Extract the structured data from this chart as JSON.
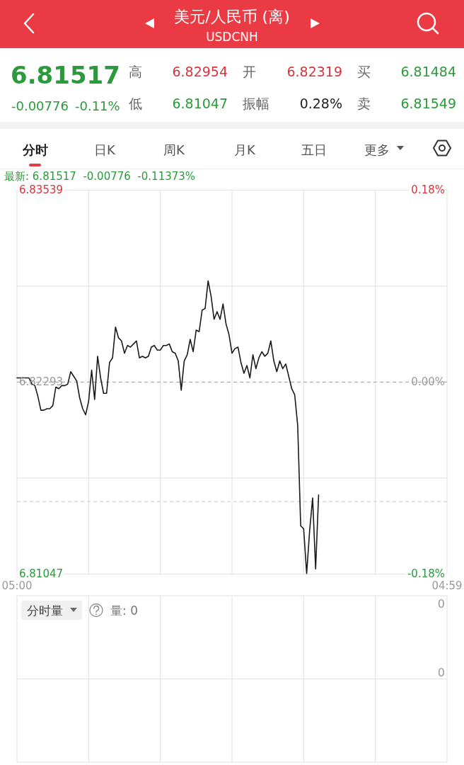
{
  "chart_data": [
    {
      "type": "line",
      "title": "美元/人民币 (离)",
      "subtitle": "USDCNH",
      "annotations": [
        "6.81517",
        "-0.00776",
        "-0.11%",
        "高",
        "6.82954",
        "开",
        "6.82319",
        "买",
        "6.81484",
        "低",
        "6.81047",
        "振幅",
        "0.28%",
        "卖",
        "6.81549",
        "分时",
        "日K",
        "周K",
        "月K",
        "五日",
        "更多",
        "最新: 6.81517  -0.00776  -0.11373%"
      ],
      "categories": [
        "05:00",
        null,
        null,
        null,
        null,
        null,
        null,
        null,
        null,
        null,
        null,
        null,
        null,
        null,
        null,
        null,
        null,
        null,
        null,
        null,
        null,
        null,
        null,
        null,
        null,
        null,
        null,
        null,
        null,
        null,
        null,
        null,
        null,
        null,
        null,
        null,
        null,
        null,
        null,
        null,
        null,
        null,
        null,
        null,
        null,
        null,
        null,
        null,
        null,
        null,
        null,
        null,
        null,
        null,
        null,
        null,
        null,
        null,
        null,
        null,
        null,
        null,
        null,
        null,
        null,
        null,
        null,
        null,
        null,
        null,
        null,
        null,
        null,
        null,
        null,
        null,
        null,
        null,
        null,
        null,
        null,
        null,
        null,
        null,
        null,
        null,
        null,
        null,
        null,
        null,
        null,
        null,
        null,
        null,
        null,
        null,
        null,
        null,
        null,
        null,
        null,
        null,
        null,
        null,
        null,
        null,
        null,
        null,
        null,
        null,
        null,
        null,
        null,
        null,
        null,
        null,
        null,
        null,
        null,
        null,
        null,
        null,
        null,
        null,
        null,
        null,
        null,
        null,
        null,
        null,
        null,
        null,
        null,
        null,
        null,
        null,
        null,
        null,
        null,
        null,
        null,
        null,
        null,
        null,
        "04:59"
      ],
      "values": [
        6.8232,
        6.8232,
        6.8232,
        6.8232,
        6.8232,
        6.8228,
        6.8227,
        6.822,
        6.8211,
        6.8211,
        6.8212,
        6.8212,
        6.8214,
        6.8226,
        6.8225,
        6.8227,
        6.8227,
        6.8228,
        6.8236,
        6.8233,
        6.823,
        6.8219,
        6.8212,
        6.8208,
        6.8217,
        6.8237,
        6.8218,
        6.8246,
        6.8232,
        6.8222,
        6.8222,
        6.8242,
        6.8245,
        6.8265,
        6.8258,
        6.8256,
        6.8248,
        6.8253,
        6.8252,
        6.8254,
        6.8256,
        6.8245,
        6.8246,
        6.8245,
        6.8246,
        6.8252,
        6.8253,
        6.825,
        6.825,
        6.8253,
        6.8253,
        6.8254,
        6.8249,
        6.8248,
        6.8243,
        6.8224,
        6.8243,
        6.8247,
        6.8257,
        6.8249,
        6.8263,
        6.8262,
        6.8276,
        6.8277,
        6.8295,
        6.8285,
        6.827,
        6.8275,
        6.827,
        6.828,
        6.8267,
        6.826,
        6.8248,
        6.8251,
        6.8252,
        6.8242,
        6.8235,
        6.824,
        6.8232,
        6.8247,
        6.8238,
        6.8245,
        6.8249,
        6.8246,
        6.8248,
        6.8256,
        6.8243,
        6.8236,
        6.8243,
        6.8238,
        6.8241,
        6.8233,
        6.8225,
        6.8221,
        6.8201,
        6.8136,
        6.8134,
        6.8105,
        6.8133,
        6.8154,
        6.8108,
        6.8156,
        null,
        null,
        null,
        null,
        null,
        null,
        null,
        null,
        null,
        null,
        null,
        null,
        null,
        null,
        null,
        null,
        null,
        null,
        null,
        null,
        null,
        null,
        null,
        null,
        null,
        null,
        null,
        null,
        null,
        null,
        null,
        null,
        null,
        null,
        null,
        null,
        null,
        null,
        null,
        null,
        null,
        null,
        null
      ],
      "color": "#1a1a1a",
      "ylim": [
        6.81047,
        6.83539
      ],
      "yticks": [
        6.81047,
        {
          "value": 6.8167,
          "label": null
        },
        6.82293,
        {
          "value": 6.82916,
          "label": null
        },
        6.83539
      ],
      "y2lim": [
        -0.18,
        0.18
      ],
      "y2ticks": [
        {
          "value": -0.18,
          "label": "-0.18%"
        },
        {
          "value": 0,
          "label": "0.00%"
        },
        {
          "value": 0.18,
          "label": "0.18%"
        }
      ],
      "grid": true,
      "ref_lines": [
        {
          "axis": "y",
          "value": 6.82293,
          "line_style": "dashed",
          "color": "#9a9a9a"
        },
        {
          "axis": "y",
          "value": 6.81517,
          "line_style": "dashed",
          "color": "#c4c4c4"
        }
      ]
    },
    {
      "type": "other",
      "title": "分时量",
      "annotations": [
        "量: 0",
        "0",
        "0"
      ]
    }
  ]
}
